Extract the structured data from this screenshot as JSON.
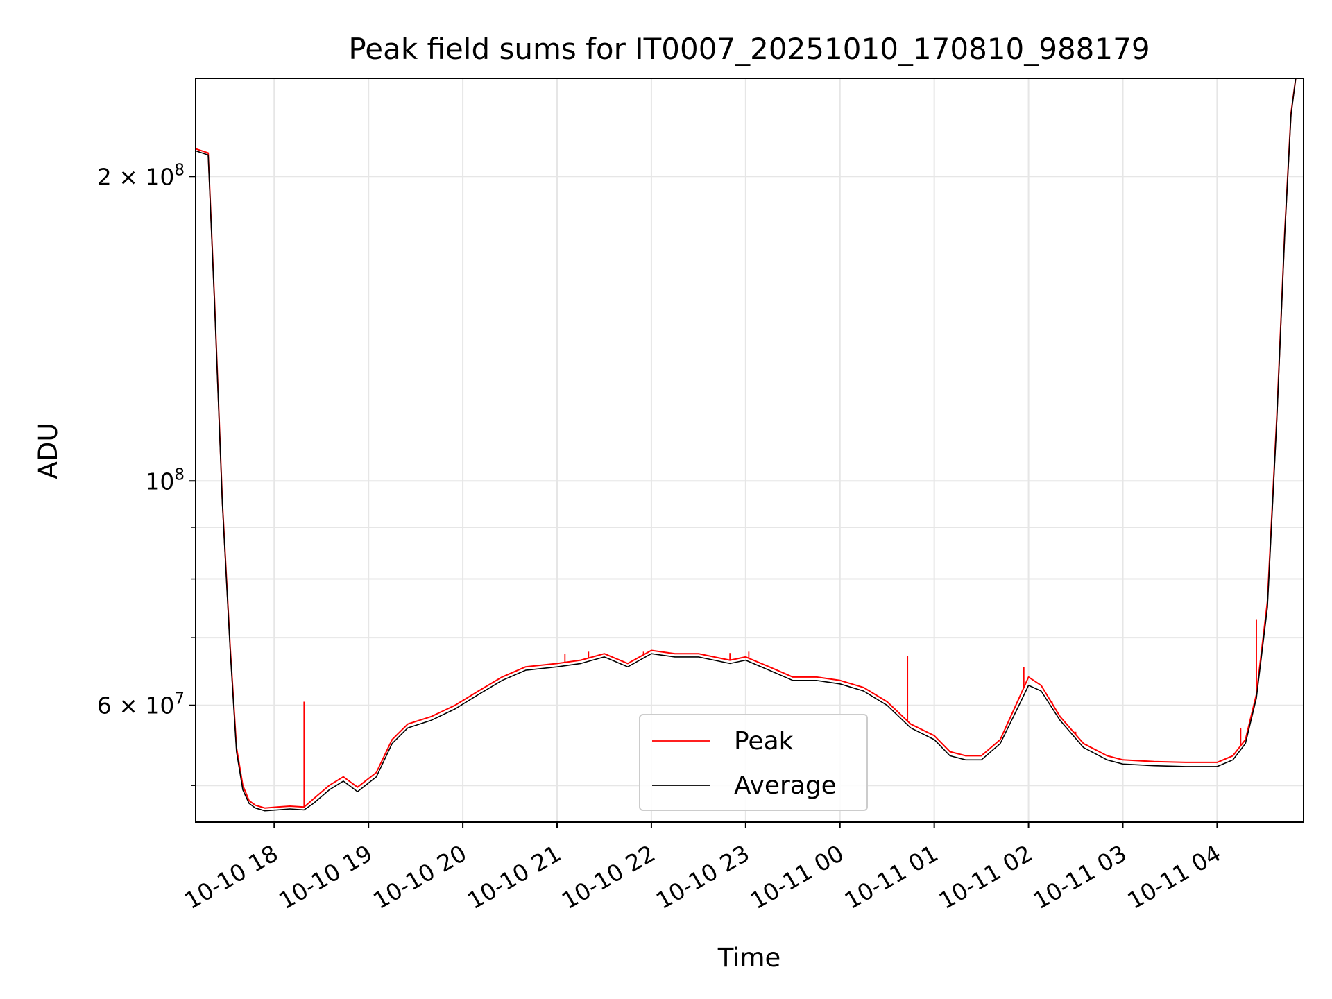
{
  "chart_data": {
    "type": "line",
    "title": "Peak field sums for IT0007_20251010_170810_988179",
    "xlabel": "Time",
    "ylabel": "ADU",
    "yscale": "log",
    "ylim": [
      46000000,
      250000000
    ],
    "xlim": [
      "2025-10-10 17:10",
      "2025-10-11 04:55"
    ],
    "grid": true,
    "legend": "lower center",
    "x_ticks": [
      {
        "t": "2025-10-10 18:00",
        "label": "10-10 18"
      },
      {
        "t": "2025-10-10 19:00",
        "label": "10-10 19"
      },
      {
        "t": "2025-10-10 20:00",
        "label": "10-10 20"
      },
      {
        "t": "2025-10-10 21:00",
        "label": "10-10 21"
      },
      {
        "t": "2025-10-10 22:00",
        "label": "10-10 22"
      },
      {
        "t": "2025-10-10 23:00",
        "label": "10-10 23"
      },
      {
        "t": "2025-10-11 00:00",
        "label": "10-11 00"
      },
      {
        "t": "2025-10-11 01:00",
        "label": "10-11 01"
      },
      {
        "t": "2025-10-11 02:00",
        "label": "10-11 02"
      },
      {
        "t": "2025-10-11 03:00",
        "label": "10-11 03"
      },
      {
        "t": "2025-10-11 04:00",
        "label": "10-11 04"
      }
    ],
    "y_ticks": [
      {
        "value": 200000000,
        "label": "2 × 10^8",
        "base": "2 × 10",
        "exp": "8"
      },
      {
        "value": 100000000,
        "label": "10^8",
        "base": "10",
        "exp": "8"
      },
      {
        "value": 60000000,
        "label": "6 × 10^7",
        "base": "6 × 10",
        "exp": "7"
      }
    ],
    "y_minor_ticks": [
      50000000,
      70000000,
      80000000,
      90000000
    ],
    "series": [
      {
        "name": "Average",
        "color": "#000000",
        "x": [
          "2025-10-10 17:10",
          "2025-10-10 17:18",
          "2025-10-10 17:22",
          "2025-10-10 17:27",
          "2025-10-10 17:32",
          "2025-10-10 17:36",
          "2025-10-10 17:40",
          "2025-10-10 17:44",
          "2025-10-10 17:48",
          "2025-10-10 17:54",
          "2025-10-10 18:02",
          "2025-10-10 18:10",
          "2025-10-10 18:19",
          "2025-10-10 18:25",
          "2025-10-10 18:35",
          "2025-10-10 18:44",
          "2025-10-10 18:53",
          "2025-10-10 19:05",
          "2025-10-10 19:15",
          "2025-10-10 19:25",
          "2025-10-10 19:40",
          "2025-10-10 19:55",
          "2025-10-10 20:10",
          "2025-10-10 20:25",
          "2025-10-10 20:40",
          "2025-10-10 21:00",
          "2025-10-10 21:15",
          "2025-10-10 21:30",
          "2025-10-10 21:45",
          "2025-10-10 22:00",
          "2025-10-10 22:15",
          "2025-10-10 22:30",
          "2025-10-10 22:50",
          "2025-10-10 23:00",
          "2025-10-10 23:15",
          "2025-10-10 23:30",
          "2025-10-10 23:45",
          "2025-10-11 00:00",
          "2025-10-11 00:15",
          "2025-10-11 00:30",
          "2025-10-11 00:45",
          "2025-10-11 01:00",
          "2025-10-11 01:10",
          "2025-10-11 01:20",
          "2025-10-11 01:30",
          "2025-10-11 01:42",
          "2025-10-11 01:55",
          "2025-10-11 02:00",
          "2025-10-11 02:08",
          "2025-10-11 02:20",
          "2025-10-11 02:35",
          "2025-10-11 02:50",
          "2025-10-11 03:00",
          "2025-10-11 03:20",
          "2025-10-11 03:40",
          "2025-10-11 04:00",
          "2025-10-11 04:10",
          "2025-10-11 04:18",
          "2025-10-11 04:25",
          "2025-10-11 04:32",
          "2025-10-11 04:38",
          "2025-10-11 04:43",
          "2025-10-11 04:47",
          "2025-10-11 04:50",
          "2025-10-11 04:55"
        ],
        "values": [
          212000000,
          210000000,
          150000000,
          95000000,
          68000000,
          54000000,
          49500000,
          48000000,
          47500000,
          47200000,
          47300000,
          47400000,
          47300000,
          48000000,
          49500000,
          50500000,
          49300000,
          51000000,
          55000000,
          57000000,
          58000000,
          59500000,
          61500000,
          63500000,
          65000000,
          65500000,
          66000000,
          67000000,
          65500000,
          67500000,
          67000000,
          67000000,
          66000000,
          66500000,
          65000000,
          63500000,
          63500000,
          63000000,
          62000000,
          60000000,
          57000000,
          55500000,
          53500000,
          53000000,
          53000000,
          55000000,
          60500000,
          62800000,
          62000000,
          58000000,
          54500000,
          53000000,
          52500000,
          52300000,
          52200000,
          52200000,
          53000000,
          55000000,
          61000000,
          75000000,
          115000000,
          175000000,
          230000000,
          250000000,
          250000000
        ]
      },
      {
        "name": "Peak",
        "color": "#ff0000",
        "x": [
          "2025-10-10 17:10",
          "2025-10-10 17:18",
          "2025-10-10 17:22",
          "2025-10-10 17:27",
          "2025-10-10 17:32",
          "2025-10-10 17:36",
          "2025-10-10 17:40",
          "2025-10-10 17:44",
          "2025-10-10 17:48",
          "2025-10-10 17:54",
          "2025-10-10 18:02",
          "2025-10-10 18:10",
          "2025-10-10 18:19",
          "2025-10-10 18:25",
          "2025-10-10 18:35",
          "2025-10-10 18:44",
          "2025-10-10 18:53",
          "2025-10-10 19:05",
          "2025-10-10 19:15",
          "2025-10-10 19:25",
          "2025-10-10 19:40",
          "2025-10-10 19:55",
          "2025-10-10 20:10",
          "2025-10-10 20:25",
          "2025-10-10 20:40",
          "2025-10-10 21:00",
          "2025-10-10 21:15",
          "2025-10-10 21:30",
          "2025-10-10 21:45",
          "2025-10-10 22:00",
          "2025-10-10 22:15",
          "2025-10-10 22:30",
          "2025-10-10 22:50",
          "2025-10-10 23:00",
          "2025-10-10 23:15",
          "2025-10-10 23:30",
          "2025-10-10 23:45",
          "2025-10-11 00:00",
          "2025-10-11 00:15",
          "2025-10-11 00:30",
          "2025-10-11 00:45",
          "2025-10-11 01:00",
          "2025-10-11 01:10",
          "2025-10-11 01:20",
          "2025-10-11 01:30",
          "2025-10-11 01:42",
          "2025-10-11 01:55",
          "2025-10-11 02:00",
          "2025-10-11 02:08",
          "2025-10-11 02:20",
          "2025-10-11 02:35",
          "2025-10-11 02:50",
          "2025-10-11 03:00",
          "2025-10-11 03:20",
          "2025-10-11 03:40",
          "2025-10-11 04:00",
          "2025-10-11 04:10",
          "2025-10-11 04:18",
          "2025-10-11 04:25",
          "2025-10-11 04:32",
          "2025-10-11 04:38",
          "2025-10-11 04:43",
          "2025-10-11 04:47",
          "2025-10-11 04:50",
          "2025-10-11 04:55"
        ],
        "values": [
          213000000,
          211000000,
          151000000,
          95500000,
          68500000,
          54500000,
          50000000,
          48300000,
          47800000,
          47500000,
          47600000,
          47700000,
          47600000,
          48500000,
          50000000,
          51000000,
          49800000,
          51500000,
          55500000,
          57500000,
          58500000,
          60000000,
          62000000,
          64000000,
          65500000,
          66000000,
          66500000,
          67500000,
          66000000,
          68000000,
          67500000,
          67500000,
          66500000,
          67000000,
          65500000,
          64000000,
          64000000,
          63500000,
          62500000,
          60500000,
          57500000,
          56000000,
          54000000,
          53500000,
          53500000,
          55500000,
          61500000,
          64000000,
          62800000,
          58500000,
          55000000,
          53500000,
          53000000,
          52800000,
          52700000,
          52700000,
          53500000,
          55500000,
          61500000,
          76000000,
          116000000,
          176000000,
          231000000,
          250000000,
          250000000
        ],
        "spikes": [
          {
            "t": "2025-10-10 18:19",
            "value": 60500000
          },
          {
            "t": "2025-10-10 21:05",
            "value": 67500000
          },
          {
            "t": "2025-10-10 21:20",
            "value": 67800000
          },
          {
            "t": "2025-10-10 21:55",
            "value": 67800000
          },
          {
            "t": "2025-10-10 22:50",
            "value": 67600000
          },
          {
            "t": "2025-10-10 23:02",
            "value": 67800000
          },
          {
            "t": "2025-10-11 00:43",
            "value": 67200000
          },
          {
            "t": "2025-10-11 01:57",
            "value": 65500000
          },
          {
            "t": "2025-10-11 02:15",
            "value": 60500000
          },
          {
            "t": "2025-10-11 02:30",
            "value": 56500000
          },
          {
            "t": "2025-10-11 04:15",
            "value": 57000000
          },
          {
            "t": "2025-10-11 04:25",
            "value": 73000000
          }
        ]
      }
    ],
    "legend_entries": [
      {
        "name": "Peak",
        "color": "#ff0000"
      },
      {
        "name": "Average",
        "color": "#000000"
      }
    ]
  }
}
